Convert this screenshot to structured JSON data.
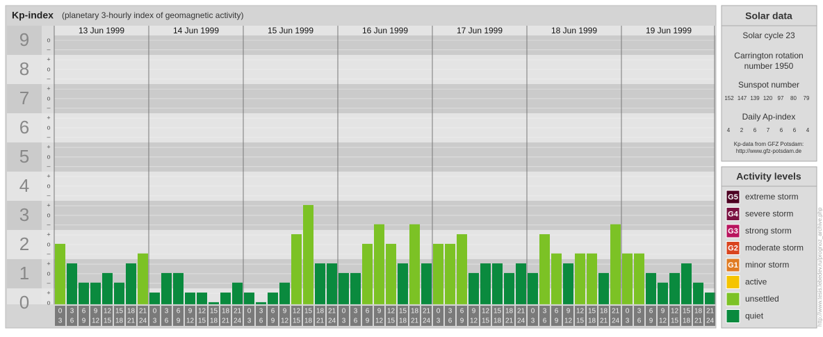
{
  "chart_data": {
    "type": "bar",
    "title": "Kp-index",
    "subtitle": "(planetary 3-hourly index of geomagnetic activity)",
    "categories": [
      "13 Jun 1999",
      "14 Jun 1999",
      "15 Jun 1999",
      "16 Jun 1999",
      "17 Jun 1999",
      "18 Jun 1999",
      "19 Jun 1999"
    ],
    "hours": [
      [
        "0",
        "3"
      ],
      [
        "3",
        "6"
      ],
      [
        "6",
        "9"
      ],
      [
        "9",
        "12"
      ],
      [
        "12",
        "15"
      ],
      [
        "15",
        "18"
      ],
      [
        "18",
        "21"
      ],
      [
        "21",
        "24"
      ]
    ],
    "values": [
      [
        2,
        1.33,
        0.67,
        0.67,
        1,
        0.67,
        1.33,
        1.67
      ],
      [
        0.33,
        1,
        1,
        0.33,
        0.33,
        0,
        0.33,
        0.67
      ],
      [
        0.33,
        0,
        0.33,
        0.67,
        2.33,
        3.33,
        1.33,
        1.33
      ],
      [
        1,
        1,
        2,
        2.67,
        2,
        1.33,
        2.67,
        1.33
      ],
      [
        2,
        2,
        2.33,
        1,
        1.33,
        1.33,
        1,
        1.33
      ],
      [
        1,
        2.33,
        1.67,
        1.33,
        1.67,
        1.67,
        1,
        2.67
      ],
      [
        1.67,
        1.67,
        1,
        0.67,
        1,
        1.33,
        0.67,
        0.33
      ]
    ],
    "colors": [
      [
        "#7cc225",
        "#0a8a3e",
        "#0a8a3e",
        "#0a8a3e",
        "#0a8a3e",
        "#0a8a3e",
        "#0a8a3e",
        "#7cc225"
      ],
      [
        "#0a8a3e",
        "#0a8a3e",
        "#0a8a3e",
        "#0a8a3e",
        "#0a8a3e",
        "#0a8a3e",
        "#0a8a3e",
        "#0a8a3e"
      ],
      [
        "#0a8a3e",
        "#0a8a3e",
        "#0a8a3e",
        "#0a8a3e",
        "#7cc225",
        "#7cc225",
        "#0a8a3e",
        "#0a8a3e"
      ],
      [
        "#0a8a3e",
        "#0a8a3e",
        "#7cc225",
        "#7cc225",
        "#7cc225",
        "#0a8a3e",
        "#7cc225",
        "#0a8a3e"
      ],
      [
        "#7cc225",
        "#7cc225",
        "#7cc225",
        "#0a8a3e",
        "#0a8a3e",
        "#0a8a3e",
        "#0a8a3e",
        "#0a8a3e"
      ],
      [
        "#0a8a3e",
        "#7cc225",
        "#7cc225",
        "#0a8a3e",
        "#7cc225",
        "#7cc225",
        "#0a8a3e",
        "#7cc225"
      ],
      [
        "#7cc225",
        "#7cc225",
        "#0a8a3e",
        "#0a8a3e",
        "#0a8a3e",
        "#0a8a3e",
        "#0a8a3e",
        "#0a8a3e"
      ]
    ],
    "ylim": [
      -0.05,
      9.5
    ],
    "yticks": [
      0,
      1,
      2,
      3,
      4,
      5,
      6,
      7,
      8,
      9
    ],
    "minor_ticks": [
      {
        "value": 0,
        "label": "o"
      },
      {
        "value": 0.33,
        "label": "+"
      },
      {
        "value": 0.67,
        "label": "–"
      },
      {
        "value": 1,
        "label": "o"
      },
      {
        "value": 1.33,
        "label": "+"
      },
      {
        "value": 1.67,
        "label": "–"
      },
      {
        "value": 2,
        "label": "o"
      },
      {
        "value": 2.33,
        "label": "+"
      },
      {
        "value": 2.67,
        "label": "–"
      },
      {
        "value": 3,
        "label": "o"
      },
      {
        "value": 3.33,
        "label": "+"
      },
      {
        "value": 3.67,
        "label": "–"
      },
      {
        "value": 4,
        "label": "o"
      },
      {
        "value": 4.33,
        "label": "+"
      },
      {
        "value": 4.67,
        "label": "–"
      },
      {
        "value": 5,
        "label": "o"
      },
      {
        "value": 5.33,
        "label": "+"
      },
      {
        "value": 5.67,
        "label": "–"
      },
      {
        "value": 6,
        "label": "o"
      },
      {
        "value": 6.33,
        "label": "+"
      },
      {
        "value": 6.67,
        "label": "–"
      },
      {
        "value": 7,
        "label": "o"
      },
      {
        "value": 7.33,
        "label": "+"
      },
      {
        "value": 7.67,
        "label": "–"
      },
      {
        "value": 8,
        "label": "o"
      },
      {
        "value": 8.33,
        "label": "+"
      },
      {
        "value": 8.67,
        "label": "–"
      },
      {
        "value": 9,
        "label": "o"
      }
    ],
    "grid": true
  },
  "solar": {
    "title": "Solar data",
    "cycle": "Solar cycle 23",
    "carrington_1": "Carrington rotation",
    "carrington_2": "number 1950",
    "sunspot_title": "Sunspot number",
    "sunspot_numbers": [
      152,
      147,
      139,
      120,
      97,
      80,
      79
    ],
    "ap_title": "Daily Ap-index",
    "ap_index": [
      4,
      2,
      6,
      7,
      6,
      6,
      4
    ],
    "source_1": "Kp-data from GFZ Potsdam:",
    "source_2": "http://www.gfz-potsdam.de"
  },
  "activity": {
    "title": "Activity levels",
    "levels": [
      {
        "badge": "G5",
        "name": "extreme storm",
        "color": "#4d0022"
      },
      {
        "badge": "G4",
        "name": "severe storm",
        "color": "#7a1040"
      },
      {
        "badge": "G3",
        "name": "strong storm",
        "color": "#b8145e"
      },
      {
        "badge": "G2",
        "name": "moderate storm",
        "color": "#d9441f"
      },
      {
        "badge": "G1",
        "name": "minor storm",
        "color": "#e07b22"
      },
      {
        "name": "active",
        "color": "#f5c400"
      },
      {
        "name": "unsettled",
        "color": "#7cc225"
      },
      {
        "name": "quiet",
        "color": "#0a8a3e"
      }
    ]
  },
  "credit": "http://www.tesis.lebedev.ru/prognoz_archive.php"
}
